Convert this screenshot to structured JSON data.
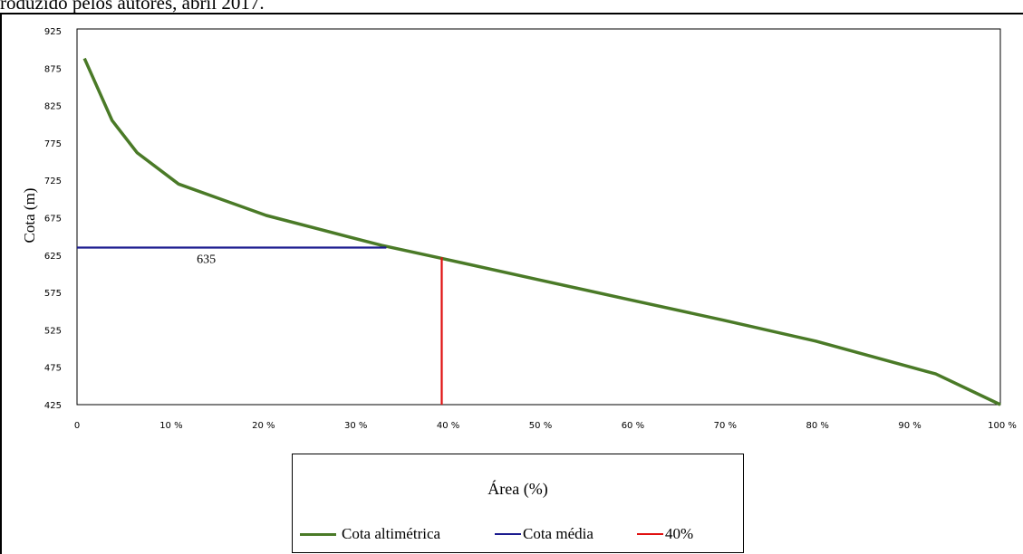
{
  "caption": "roduzido pelos autores, abril 2017.",
  "chart_data": {
    "type": "line",
    "title": "",
    "xlabel": "Área (%)",
    "ylabel": "Cota (m)",
    "xlim": [
      0,
      100
    ],
    "ylim": [
      425,
      925
    ],
    "x_ticks": [
      "0",
      "10 %",
      "20 %",
      "30 %",
      "40 %",
      "50 %",
      "60 %",
      "70 %",
      "80 %",
      "90 %",
      "100 %"
    ],
    "y_ticks": [
      "925",
      "875",
      "825",
      "775",
      "725",
      "675",
      "625",
      "575",
      "525",
      "475",
      "425"
    ],
    "series": [
      {
        "name": "Cota altimétrica",
        "color": "#4a7a27",
        "x": [
          0.8,
          3.8,
          6.5,
          11,
          20.5,
          33,
          39,
          50,
          60,
          70,
          80,
          93,
          100
        ],
        "y": [
          888,
          805,
          762,
          720,
          678,
          638,
          622,
          592,
          565,
          538,
          510,
          466,
          425
        ]
      },
      {
        "name": "Cota média",
        "color": "#1b1b8f",
        "x": [
          0,
          33.5
        ],
        "y": [
          635,
          635
        ]
      },
      {
        "name": "40%",
        "color": "#e01010",
        "x": [
          39.5,
          39.5
        ],
        "y": [
          425,
          622
        ]
      }
    ],
    "annotations": [
      {
        "text": "635",
        "x": 14,
        "y": 622
      }
    ],
    "grid": false,
    "legend_position": "bottom"
  }
}
